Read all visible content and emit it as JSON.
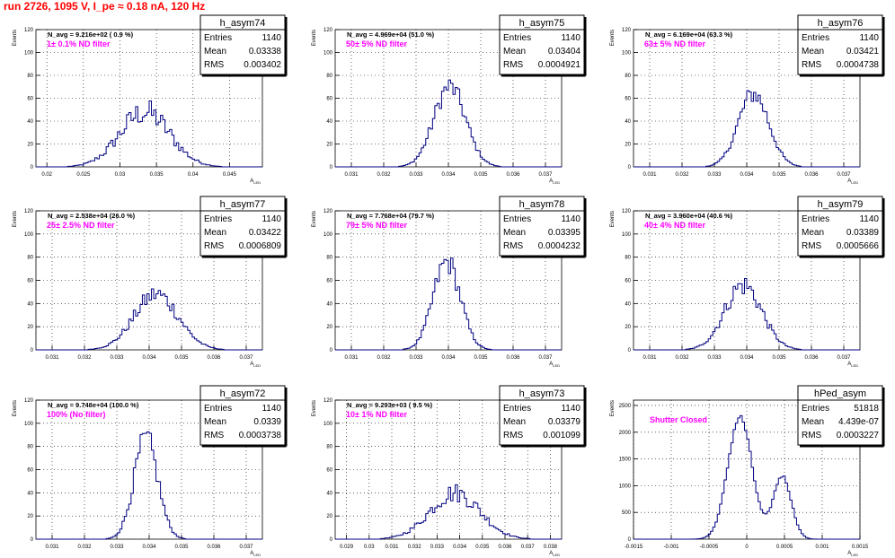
{
  "page": {
    "title": "run 2726,  1095 V, I_pe ≈ 0.18 nA, 120 Hz"
  },
  "colors": {
    "line": "#000080",
    "annotation": "#ff00ff",
    "title": "#ff0000",
    "grid": "#000000"
  },
  "chart_data": [
    {
      "type": "bar",
      "name": "h_asym74",
      "stats": {
        "Entries": "1140",
        "Mean": "0.03338",
        "RMS": "0.003402"
      },
      "navg": "N_avg = 9.216e+02 ( 0.9 %)",
      "annotation": "1± 0.1% ND filter",
      "xlabel": "A_LED",
      "ylabel": "Events",
      "xlim": [
        0.0185,
        0.0495
      ],
      "ylim": [
        0,
        120
      ],
      "xticks": [
        "0.02",
        "0.025",
        "0.03",
        "0.035",
        "0.04",
        "0.045"
      ],
      "xtick_values": [
        0.02,
        0.025,
        0.03,
        0.035,
        0.04,
        0.045
      ],
      "yticks": [
        "0",
        "20",
        "40",
        "60",
        "80",
        "100",
        "120"
      ],
      "ytick_values": [
        0,
        20,
        40,
        60,
        80,
        100,
        120
      ],
      "gauss": [
        {
          "mean": 0.0334,
          "sigma": 0.0034,
          "amp": 48
        }
      ],
      "noise": 0.35
    },
    {
      "type": "bar",
      "name": "h_asym75",
      "stats": {
        "Entries": "1140",
        "Mean": "0.03404",
        "RMS": "0.0004921"
      },
      "navg": "N_avg = 4.969e+04 (51.0 %)",
      "annotation": "50± 5% ND filter",
      "xlabel": "A_LED",
      "ylabel": "Events",
      "xlim": [
        0.0305,
        0.0375
      ],
      "ylim": [
        0,
        120
      ],
      "xticks": [
        "0.031",
        "0.032",
        "0.033",
        "0.034",
        "0.035",
        "0.036",
        "0.037"
      ],
      "xtick_values": [
        0.031,
        0.032,
        0.033,
        0.034,
        0.035,
        0.036,
        0.037
      ],
      "yticks": [
        "0",
        "20",
        "40",
        "60",
        "80",
        "100",
        "120"
      ],
      "ytick_values": [
        0,
        20,
        40,
        60,
        80,
        100,
        120
      ],
      "gauss": [
        {
          "mean": 0.03404,
          "sigma": 0.00049,
          "amp": 70
        }
      ],
      "noise": 0.2
    },
    {
      "type": "bar",
      "name": "h_asym76",
      "stats": {
        "Entries": "1140",
        "Mean": "0.03421",
        "RMS": "0.0004738"
      },
      "navg": "N_avg = 6.169e+04 (63.3 %)",
      "annotation": "63± 5% ND filter",
      "xlabel": "A_LED",
      "ylabel": "Events",
      "xlim": [
        0.0305,
        0.0375
      ],
      "ylim": [
        0,
        120
      ],
      "xticks": [
        "0.031",
        "0.032",
        "0.033",
        "0.034",
        "0.035",
        "0.036",
        "0.037"
      ],
      "xtick_values": [
        0.031,
        0.032,
        0.033,
        0.034,
        0.035,
        0.036,
        0.037
      ],
      "yticks": [
        "0",
        "20",
        "40",
        "60",
        "80",
        "100",
        "120"
      ],
      "ytick_values": [
        0,
        20,
        40,
        60,
        80,
        100,
        120
      ],
      "gauss": [
        {
          "mean": 0.03421,
          "sigma": 0.00047,
          "amp": 64
        }
      ],
      "noise": 0.2
    },
    {
      "type": "bar",
      "name": "h_asym77",
      "stats": {
        "Entries": "1140",
        "Mean": "0.03422",
        "RMS": "0.0006809"
      },
      "navg": "N_avg = 2.538e+04 (26.0 %)",
      "annotation": "25± 2.5% ND filter",
      "xlabel": "A_LED",
      "ylabel": "Events",
      "xlim": [
        0.0305,
        0.0375
      ],
      "ylim": [
        0,
        120
      ],
      "xticks": [
        "0.031",
        "0.032",
        "0.033",
        "0.034",
        "0.035",
        "0.036",
        "0.037"
      ],
      "xtick_values": [
        0.031,
        0.032,
        0.033,
        0.034,
        0.035,
        0.036,
        0.037
      ],
      "yticks": [
        "0",
        "20",
        "40",
        "60",
        "80",
        "100",
        "120"
      ],
      "ytick_values": [
        0,
        20,
        40,
        60,
        80,
        100,
        120
      ],
      "gauss": [
        {
          "mean": 0.03422,
          "sigma": 0.00068,
          "amp": 48
        }
      ],
      "noise": 0.25
    },
    {
      "type": "bar",
      "name": "h_asym78",
      "stats": {
        "Entries": "1140",
        "Mean": "0.03395",
        "RMS": "0.0004232"
      },
      "navg": "N_avg = 7.768e+04 (79.7 %)",
      "annotation": "79± 5% ND filter",
      "xlabel": "A_LED",
      "ylabel": "Events",
      "xlim": [
        0.0305,
        0.0375
      ],
      "ylim": [
        0,
        120
      ],
      "xticks": [
        "0.031",
        "0.032",
        "0.033",
        "0.034",
        "0.035",
        "0.036",
        "0.037"
      ],
      "xtick_values": [
        0.031,
        0.032,
        0.033,
        0.034,
        0.035,
        0.036,
        0.037
      ],
      "yticks": [
        "0",
        "20",
        "40",
        "60",
        "80",
        "100",
        "120"
      ],
      "ytick_values": [
        0,
        20,
        40,
        60,
        80,
        100,
        120
      ],
      "gauss": [
        {
          "mean": 0.03395,
          "sigma": 0.00042,
          "amp": 76
        }
      ],
      "noise": 0.2
    },
    {
      "type": "bar",
      "name": "h_asym79",
      "stats": {
        "Entries": "1140",
        "Mean": "0.03389",
        "RMS": "0.0005666"
      },
      "navg": "N_avg = 3.960e+04 (40.6 %)",
      "annotation": "40± 4% ND filter",
      "xlabel": "A_LED",
      "ylabel": "Events",
      "xlim": [
        0.0305,
        0.0375
      ],
      "ylim": [
        0,
        120
      ],
      "xticks": [
        "0.031",
        "0.032",
        "0.033",
        "0.034",
        "0.035",
        "0.036",
        "0.037"
      ],
      "xtick_values": [
        0.031,
        0.032,
        0.033,
        0.034,
        0.035,
        0.036,
        0.037
      ],
      "yticks": [
        "0",
        "20",
        "40",
        "60",
        "80",
        "100",
        "120"
      ],
      "ytick_values": [
        0,
        20,
        40,
        60,
        80,
        100,
        120
      ],
      "gauss": [
        {
          "mean": 0.03389,
          "sigma": 0.00057,
          "amp": 56
        }
      ],
      "noise": 0.25
    },
    {
      "type": "bar",
      "name": "h_asym72",
      "stats": {
        "Entries": "1140",
        "Mean": "0.0339",
        "RMS": "0.0003738"
      },
      "navg": "N_avg = 9.748e+04 (100.0 %)",
      "annotation": "100% (No filter)",
      "xlabel": "A_LED",
      "ylabel": "Events",
      "xlim": [
        0.0305,
        0.0375
      ],
      "ylim": [
        0,
        120
      ],
      "xticks": [
        "0.031",
        "0.032",
        "0.033",
        "0.034",
        "0.035",
        "0.036",
        "0.037"
      ],
      "xtick_values": [
        0.031,
        0.032,
        0.033,
        0.034,
        0.035,
        0.036,
        0.037
      ],
      "yticks": [
        "0",
        "20",
        "40",
        "60",
        "80",
        "100",
        "120"
      ],
      "ytick_values": [
        0,
        20,
        40,
        60,
        80,
        100,
        120
      ],
      "gauss": [
        {
          "mean": 0.0339,
          "sigma": 0.00037,
          "amp": 86
        }
      ],
      "noise": 0.2
    },
    {
      "type": "bar",
      "name": "h_asym73",
      "stats": {
        "Entries": "1140",
        "Mean": "0.03379",
        "RMS": "0.001099"
      },
      "navg": "N_avg = 9.293e+03 ( 9.5 %)",
      "annotation": "10± 1% ND filter",
      "xlabel": "A_LED",
      "ylabel": "Events",
      "xlim": [
        0.0285,
        0.0385
      ],
      "ylim": [
        0,
        120
      ],
      "xticks": [
        "0.029",
        "0.03",
        "0.031",
        "0.032",
        "0.033",
        "0.034",
        "0.035",
        "0.036",
        "0.037",
        "0.038"
      ],
      "xtick_values": [
        0.029,
        0.03,
        0.031,
        0.032,
        0.033,
        0.034,
        0.035,
        0.036,
        0.037,
        0.038
      ],
      "yticks": [
        "0",
        "20",
        "40",
        "60",
        "80",
        "100",
        "120"
      ],
      "ytick_values": [
        0,
        20,
        40,
        60,
        80,
        100,
        120
      ],
      "gauss": [
        {
          "mean": 0.03379,
          "sigma": 0.0011,
          "amp": 40
        }
      ],
      "noise": 0.3
    },
    {
      "type": "bar",
      "name": "hPed_asym",
      "stats": {
        "Entries": "51818",
        "Mean": "4.439e-07",
        "RMS": "0.0003227"
      },
      "navg": "",
      "annotation": "Shutter Closed",
      "xlabel": "A_LED",
      "ylabel": "Events",
      "xlim": [
        -0.0015,
        0.0015
      ],
      "ylim": [
        0,
        2600
      ],
      "xticks": [
        "-0.0015",
        "-0.001",
        "-0.0005",
        "0",
        "0.0005",
        "0.001",
        "0.0015"
      ],
      "xtick_values": [
        -0.0015,
        -0.001,
        -0.0005,
        0,
        0.0005,
        0.001,
        0.0015
      ],
      "yticks": [
        "0",
        "500",
        "1000",
        "1500",
        "2000",
        "2500"
      ],
      "ytick_values": [
        0,
        500,
        1000,
        1500,
        2000,
        2500
      ],
      "gauss": [
        {
          "mean": -9e-05,
          "sigma": 0.00016,
          "amp": 2280
        },
        {
          "mean": 0.00047,
          "sigma": 0.00012,
          "amp": 1180
        }
      ],
      "noise": 0.04
    }
  ]
}
